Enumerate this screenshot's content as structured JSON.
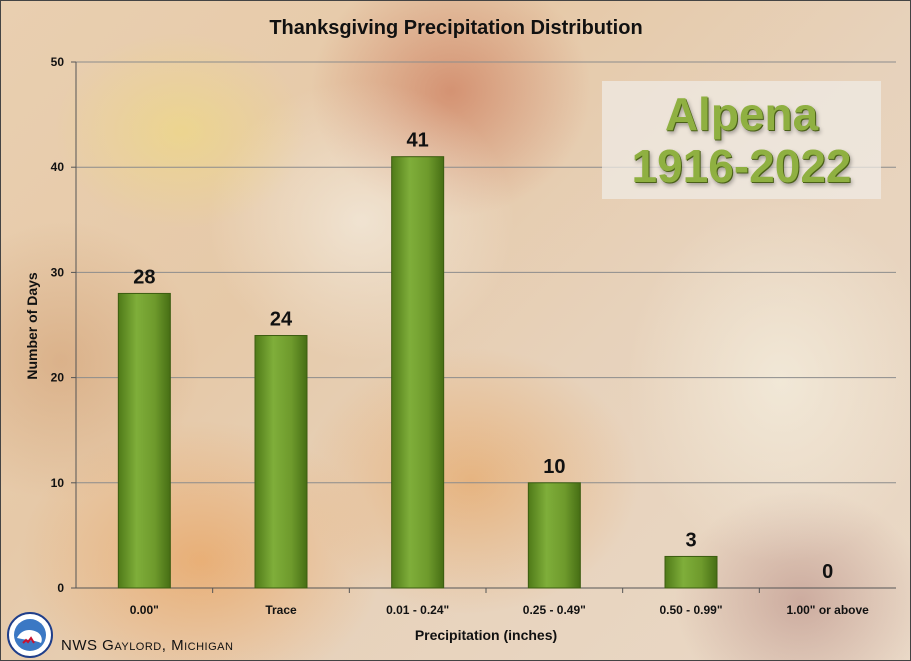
{
  "chart_data": {
    "type": "bar",
    "title": "Thanksgiving Precipitation Distribution",
    "xlabel": "Precipitation (inches)",
    "ylabel": "Number of Days",
    "categories": [
      "0.00\"",
      "Trace",
      "0.01 - 0.24\"",
      "0.25 - 0.49\"",
      "0.50 - 0.99\"",
      "1.00\" or above"
    ],
    "values": [
      28,
      24,
      41,
      10,
      3,
      0
    ],
    "data_labels": [
      "28",
      "24",
      "41",
      "10",
      "3",
      "0"
    ],
    "ylim": [
      0,
      50
    ],
    "yticks": [
      "0",
      "10",
      "20",
      "30",
      "40",
      "50"
    ],
    "grid": true,
    "bar_color": "#6e9a2c"
  },
  "overlay": {
    "location": "Alpena",
    "period": "1916-2022"
  },
  "footer": {
    "credit": "NWS Gaylord, Michigan"
  }
}
